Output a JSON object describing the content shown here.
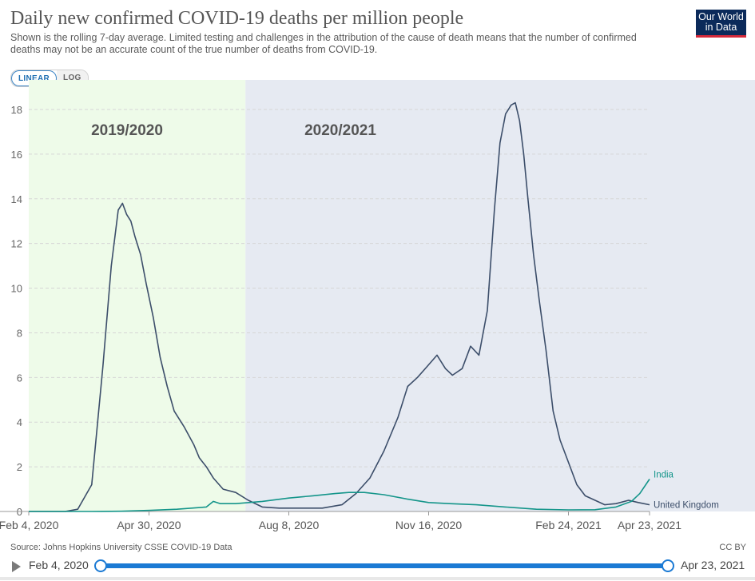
{
  "header": {
    "title": "Daily new confirmed COVID-19 deaths per million people",
    "subtitle": "Shown is the rolling 7-day average. Limited testing and challenges in the attribution of the cause of death means that the number of confirmed deaths may not be an accurate count of the true number of deaths from COVID-19.",
    "logo_line1": "Our World",
    "logo_line2": "in Data"
  },
  "controls": {
    "linear_label": "LINEAR",
    "log_label": "LOG",
    "selected": "LINEAR"
  },
  "footer": {
    "source": "Source: Johns Hopkins University CSSE COVID-19 Data",
    "license": "CC BY"
  },
  "timeline": {
    "start_label": "Feb 4, 2020",
    "end_label": "Apr 23, 2021"
  },
  "colors": {
    "uk": "#3c4e6a",
    "india": "#14958a",
    "region_2019_2020": "#eefbe9",
    "region_2020_2021": "#e6eaf2",
    "grid": "#d6d6d6",
    "accent": "#1b7ad4"
  },
  "chart_data": {
    "type": "line",
    "title": "Daily new confirmed COVID-19 deaths per million people",
    "xlabel": "",
    "ylabel": "",
    "x_tick_labels": [
      "Feb 4, 2020",
      "Apr 30, 2020",
      "Aug 8, 2020",
      "Nov 16, 2020",
      "Feb 24, 2021",
      "Apr 23, 2021"
    ],
    "y_ticks": [
      0,
      2,
      4,
      6,
      8,
      10,
      12,
      14,
      16,
      18
    ],
    "xlim": [
      "2020-02-04",
      "2021-04-23"
    ],
    "ylim": [
      0,
      18.5
    ],
    "grid": true,
    "scale": "linear",
    "regions": [
      {
        "label": "2019/2020",
        "start": "2020-02-04",
        "end": "2020-07-08"
      },
      {
        "label": "2020/2021",
        "start": "2020-07-08",
        "end": "2021-04-23"
      }
    ],
    "series": [
      {
        "name": "United Kingdom",
        "x": [
          "2020-02-04",
          "2020-03-01",
          "2020-03-10",
          "2020-03-20",
          "2020-03-28",
          "2020-04-03",
          "2020-04-08",
          "2020-04-11",
          "2020-04-14",
          "2020-04-17",
          "2020-04-20",
          "2020-04-24",
          "2020-04-28",
          "2020-05-03",
          "2020-05-08",
          "2020-05-13",
          "2020-05-18",
          "2020-05-25",
          "2020-06-01",
          "2020-06-05",
          "2020-06-10",
          "2020-06-15",
          "2020-06-22",
          "2020-07-01",
          "2020-07-10",
          "2020-07-20",
          "2020-08-01",
          "2020-08-15",
          "2020-09-01",
          "2020-09-15",
          "2020-09-25",
          "2020-10-05",
          "2020-10-15",
          "2020-10-25",
          "2020-11-01",
          "2020-11-08",
          "2020-11-15",
          "2020-11-22",
          "2020-11-28",
          "2020-12-03",
          "2020-12-10",
          "2020-12-16",
          "2020-12-22",
          "2020-12-28",
          "2021-01-02",
          "2021-01-06",
          "2021-01-10",
          "2021-01-14",
          "2021-01-17",
          "2021-01-20",
          "2021-01-23",
          "2021-01-26",
          "2021-01-30",
          "2021-02-03",
          "2021-02-08",
          "2021-02-13",
          "2021-02-18",
          "2021-02-24",
          "2021-03-02",
          "2021-03-08",
          "2021-03-15",
          "2021-03-22",
          "2021-03-30",
          "2021-04-08",
          "2021-04-15",
          "2021-04-23"
        ],
        "values": [
          0,
          0,
          0.1,
          1.2,
          6.5,
          11,
          13.5,
          13.8,
          13.3,
          13.0,
          12.3,
          11.5,
          10.2,
          8.7,
          6.9,
          5.6,
          4.5,
          3.8,
          3.0,
          2.4,
          2.0,
          1.5,
          1.0,
          0.85,
          0.5,
          0.2,
          0.15,
          0.15,
          0.15,
          0.3,
          0.8,
          1.5,
          2.7,
          4.2,
          5.6,
          6.0,
          6.5,
          7.0,
          6.4,
          6.1,
          6.4,
          7.4,
          7.0,
          9.0,
          13.5,
          16.5,
          17.8,
          18.2,
          18.3,
          17.5,
          16.0,
          14.0,
          11.5,
          9.5,
          7.2,
          4.5,
          3.2,
          2.2,
          1.2,
          0.7,
          0.5,
          0.3,
          0.35,
          0.5,
          0.4,
          0.3
        ]
      },
      {
        "name": "India",
        "x": [
          "2020-02-04",
          "2020-03-20",
          "2020-04-10",
          "2020-05-01",
          "2020-05-20",
          "2020-06-10",
          "2020-06-15",
          "2020-06-20",
          "2020-07-01",
          "2020-07-20",
          "2020-08-08",
          "2020-08-25",
          "2020-09-10",
          "2020-09-20",
          "2020-10-01",
          "2020-10-15",
          "2020-11-01",
          "2020-11-16",
          "2020-12-01",
          "2020-12-20",
          "2021-01-10",
          "2021-02-01",
          "2021-02-24",
          "2021-03-15",
          "2021-03-30",
          "2021-04-10",
          "2021-04-16",
          "2021-04-23"
        ],
        "values": [
          0,
          0,
          0.01,
          0.05,
          0.1,
          0.2,
          0.45,
          0.35,
          0.35,
          0.45,
          0.6,
          0.7,
          0.8,
          0.85,
          0.85,
          0.75,
          0.55,
          0.4,
          0.35,
          0.3,
          0.2,
          0.1,
          0.07,
          0.08,
          0.2,
          0.45,
          0.8,
          1.45
        ]
      }
    ]
  }
}
